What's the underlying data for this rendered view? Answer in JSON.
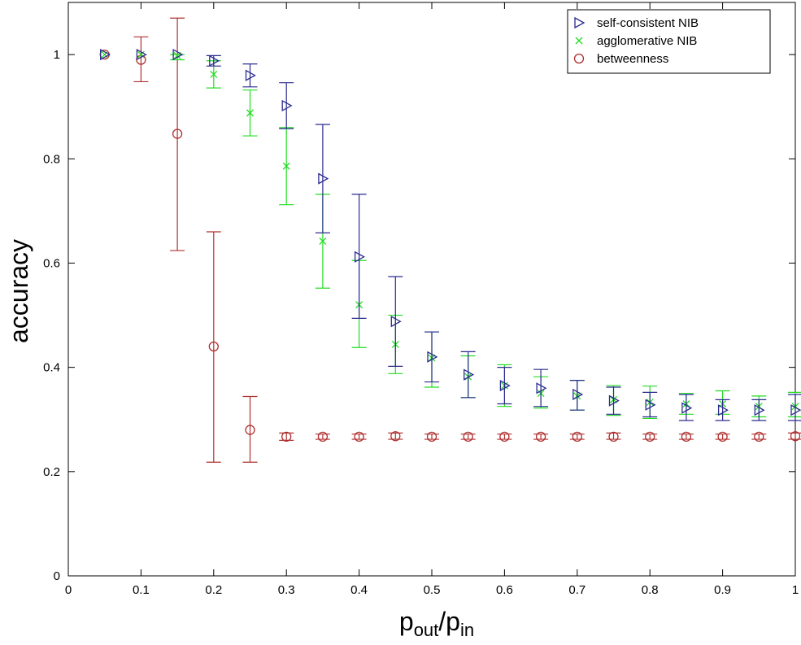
{
  "chart_data": {
    "type": "scatter",
    "xlabel": {
      "main": "p",
      "sub1": "out",
      "sep": "/p",
      "sub2": "in"
    },
    "ylabel": "accuracy",
    "xlim": [
      0,
      1
    ],
    "ylim": [
      0,
      1.1
    ],
    "xticks": [
      0,
      0.1,
      0.2,
      0.3,
      0.4,
      0.5,
      0.6,
      0.7,
      0.8,
      0.9,
      1
    ],
    "xtick_labels": [
      "0",
      "0.1",
      "0.2",
      "0.3",
      "0.4",
      "0.5",
      "0.6",
      "0.7",
      "0.8",
      "0.9",
      "1"
    ],
    "yticks": [
      0,
      0.2,
      0.4,
      0.6,
      0.8,
      1
    ],
    "ytick_labels": [
      "0",
      "0.2",
      "0.4",
      "0.6",
      "0.8",
      "1"
    ],
    "grid": false,
    "legend_position": "top-right",
    "x": [
      0.05,
      0.1,
      0.15,
      0.2,
      0.25,
      0.3,
      0.35,
      0.4,
      0.45,
      0.5,
      0.55,
      0.6,
      0.65,
      0.7,
      0.75,
      0.8,
      0.85,
      0.9,
      0.95,
      1.0
    ],
    "series": [
      {
        "name": "self-consistent NIB",
        "marker": "triangle-right",
        "color": "#2b2b8f",
        "values": [
          1.0,
          1.0,
          1.0,
          0.988,
          0.96,
          0.902,
          0.762,
          0.612,
          0.488,
          0.42,
          0.386,
          0.365,
          0.36,
          0.348,
          0.336,
          0.328,
          0.322,
          0.318,
          0.318,
          0.318
        ],
        "err_low": [
          1.0,
          1.0,
          1.0,
          0.978,
          0.938,
          0.858,
          0.658,
          0.494,
          0.402,
          0.372,
          0.342,
          0.33,
          0.325,
          0.318,
          0.31,
          0.305,
          0.298,
          0.298,
          0.298,
          0.298
        ],
        "err_high": [
          1.0,
          1.0,
          1.0,
          0.998,
          0.982,
          0.946,
          0.866,
          0.732,
          0.574,
          0.468,
          0.43,
          0.4,
          0.396,
          0.375,
          0.362,
          0.352,
          0.348,
          0.338,
          0.338,
          0.348
        ]
      },
      {
        "name": "agglomerative NIB",
        "marker": "x",
        "color": "#22dd22",
        "values": [
          1.0,
          1.0,
          0.998,
          0.962,
          0.888,
          0.786,
          0.642,
          0.52,
          0.444,
          0.418,
          0.382,
          0.365,
          0.35,
          0.345,
          0.338,
          0.333,
          0.33,
          0.33,
          0.325,
          0.325
        ],
        "err_low": [
          1.0,
          1.0,
          0.99,
          0.936,
          0.844,
          0.712,
          0.552,
          0.438,
          0.388,
          0.362,
          0.342,
          0.325,
          0.322,
          0.318,
          0.308,
          0.302,
          0.31,
          0.31,
          0.305,
          0.305
        ],
        "err_high": [
          1.0,
          1.0,
          1.0,
          0.988,
          0.932,
          0.86,
          0.732,
          0.605,
          0.5,
          0.468,
          0.422,
          0.405,
          0.382,
          0.375,
          0.365,
          0.364,
          0.35,
          0.355,
          0.345,
          0.352
        ]
      },
      {
        "name": "betweenness",
        "marker": "circle",
        "color": "#b03030",
        "values": [
          1.0,
          0.99,
          0.848,
          0.44,
          0.28,
          0.267,
          0.267,
          0.267,
          0.268,
          0.267,
          0.267,
          0.267,
          0.267,
          0.267,
          0.267,
          0.267,
          0.267,
          0.267,
          0.267,
          0.268
        ],
        "err_low": [
          1.0,
          0.948,
          0.624,
          0.218,
          0.218,
          0.26,
          0.262,
          0.262,
          0.262,
          0.262,
          0.262,
          0.262,
          0.262,
          0.262,
          0.262,
          0.262,
          0.262,
          0.262,
          0.262,
          0.262
        ],
        "err_high": [
          1.0,
          1.034,
          1.07,
          0.66,
          0.344,
          0.274,
          0.272,
          0.272,
          0.274,
          0.272,
          0.272,
          0.272,
          0.272,
          0.272,
          0.274,
          0.272,
          0.272,
          0.272,
          0.272,
          0.274
        ]
      }
    ]
  }
}
